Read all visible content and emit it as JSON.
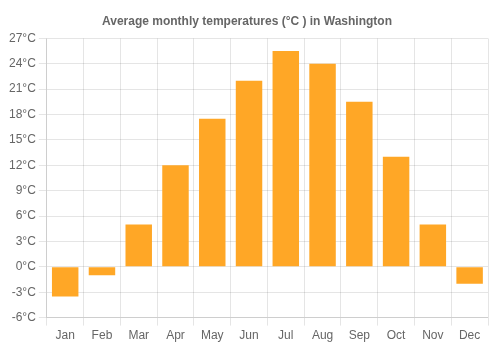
{
  "chart_data": {
    "type": "bar",
    "title": "Average monthly temperatures (°C ) in Washington",
    "categories": [
      "Jan",
      "Feb",
      "Mar",
      "Apr",
      "May",
      "Jun",
      "Jul",
      "Aug",
      "Sep",
      "Oct",
      "Nov",
      "Dec"
    ],
    "values": [
      -3.5,
      -1.0,
      5.0,
      12.0,
      17.5,
      22.0,
      25.5,
      24.0,
      19.5,
      13.0,
      5.0,
      -2.0
    ],
    "color": "#FFA726",
    "ylim": [
      -6,
      27
    ],
    "yticks": [
      {
        "value": -6,
        "label": "-6°C"
      },
      {
        "value": -3,
        "label": "-3°C"
      },
      {
        "value": 0,
        "label": "0°C"
      },
      {
        "value": 3,
        "label": "3°C"
      },
      {
        "value": 6,
        "label": "6°C"
      },
      {
        "value": 9,
        "label": "9°C"
      },
      {
        "value": 12,
        "label": "12°C"
      },
      {
        "value": 15,
        "label": "15°C"
      },
      {
        "value": 18,
        "label": "18°C"
      },
      {
        "value": 21,
        "label": "21°C"
      },
      {
        "value": 24,
        "label": "24°C"
      },
      {
        "value": 27,
        "label": "27°C"
      }
    ],
    "grid": true
  }
}
